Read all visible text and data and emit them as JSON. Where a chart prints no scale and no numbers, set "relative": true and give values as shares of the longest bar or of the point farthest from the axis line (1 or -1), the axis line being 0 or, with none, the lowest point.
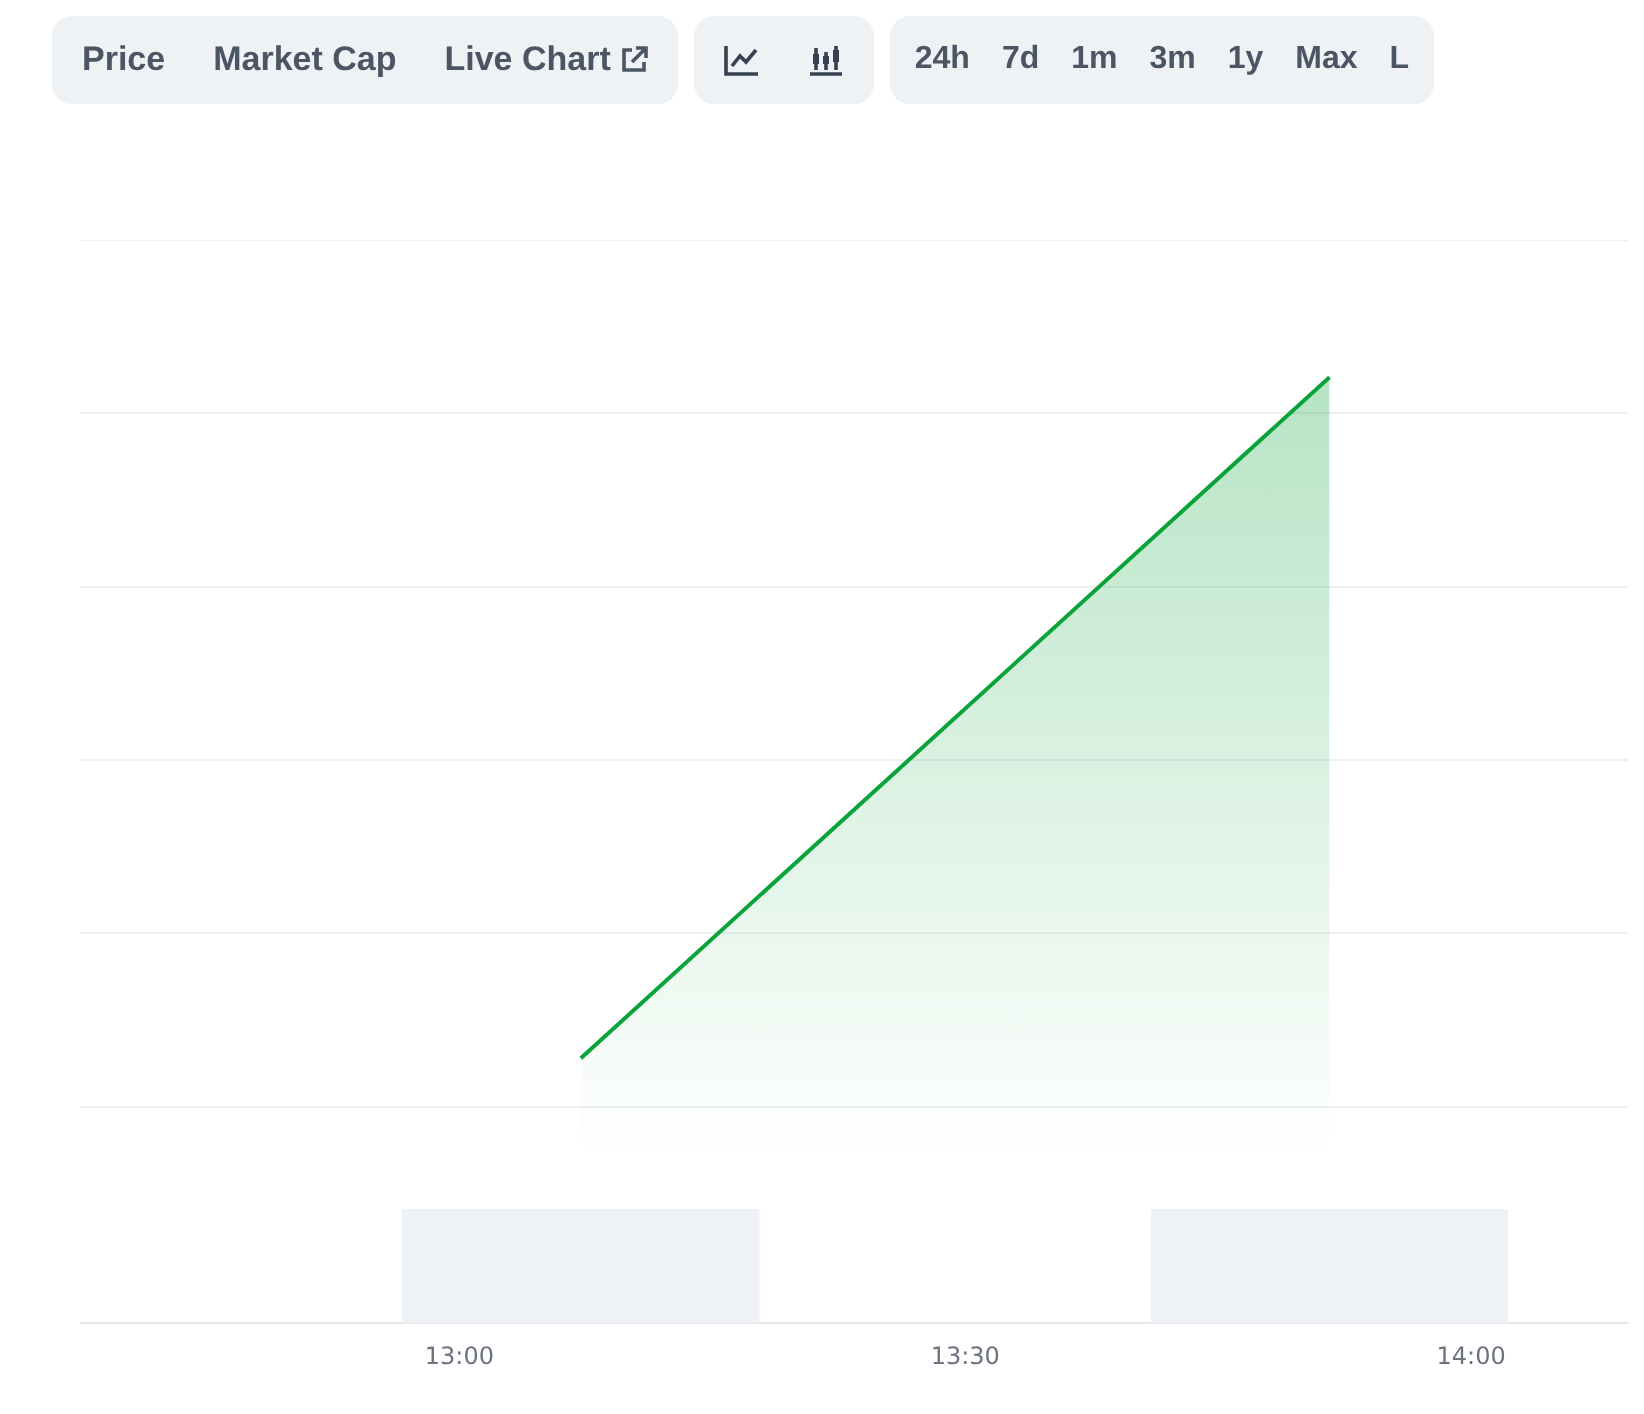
{
  "chart_data": {
    "type": "area",
    "annotations": [
      "Price",
      "Market Cap",
      "Live Chart",
      "24h",
      "7d",
      "1m",
      "3m",
      "1y",
      "Max",
      "L"
    ],
    "x": [
      13.12,
      13.86
    ],
    "relative": true,
    "grid": "y",
    "xlim": [
      12.625,
      14.155
    ],
    "xticks": [
      {
        "value": 13,
        "label": "13:00"
      },
      {
        "value": 13.5,
        "label": "13:30"
      },
      {
        "value": 14,
        "label": "14:00"
      }
    ],
    "series": [
      {
        "color": "#0aa33a",
        "values": [
          0.28,
          1
        ]
      },
      {
        "type": "bar",
        "color": "#eef1f5",
        "values": [
          0.12,
          0.12
        ]
      }
    ]
  }
}
